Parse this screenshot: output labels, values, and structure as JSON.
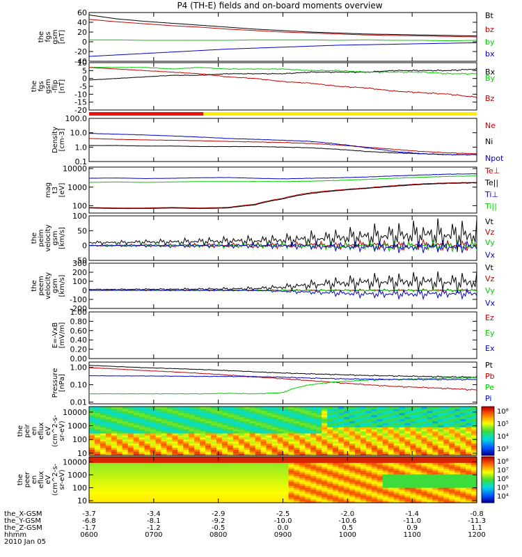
{
  "title": "P4 (TH-E) fields and on-board moments overview",
  "chart_data": [
    {
      "type": "line",
      "ylabel": [
        "the",
        "fgs",
        "gsm",
        "[nT]"
      ],
      "ylim": [
        -40,
        60
      ],
      "yticks": [
        60,
        40,
        20,
        0,
        -20,
        -40
      ],
      "series": [
        {
          "name": "Bt",
          "color": "#000000",
          "values": [
            55,
            47,
            42,
            38,
            34,
            30,
            26,
            23,
            20,
            18,
            16,
            15,
            14,
            13,
            12
          ]
        },
        {
          "name": "bz",
          "color": "#c00000",
          "values": [
            46,
            41,
            37,
            33,
            30,
            26,
            23,
            20,
            18,
            16,
            14,
            13,
            12,
            11,
            10
          ]
        },
        {
          "name": "by",
          "color": "#00cc00",
          "values": [
            4,
            4,
            3,
            3,
            3,
            3,
            4,
            4,
            4,
            3,
            4,
            3,
            3,
            2,
            3
          ]
        },
        {
          "name": "bx",
          "color": "#0000cc",
          "values": [
            -30,
            -27,
            -24,
            -21,
            -18,
            -15,
            -13,
            -11,
            -9,
            -7,
            -6,
            -5,
            -4,
            -3,
            -2
          ]
        }
      ]
    },
    {
      "type": "line",
      "ylabel": [
        "the",
        "fgs",
        "gsm",
        "-flip",
        "[nT]"
      ],
      "ylim": [
        -20,
        10
      ],
      "yticks": [
        10,
        5,
        0,
        -5,
        -10,
        -15,
        -20
      ],
      "series": [
        {
          "name": "Bx",
          "color": "#000000",
          "values": [
            -1,
            0,
            1,
            2,
            2,
            3,
            3,
            3,
            4,
            4,
            4,
            5,
            5,
            5,
            6
          ]
        },
        {
          "name": "By",
          "color": "#00cc00",
          "values": [
            7,
            7,
            7,
            6,
            7,
            6,
            6,
            6,
            5,
            5,
            4,
            4,
            4,
            3,
            3
          ]
        },
        {
          "name": "Bz",
          "color": "#c00000",
          "values": [
            7,
            6,
            5,
            4,
            3,
            1,
            0,
            -2,
            -3,
            -5,
            -6,
            -8,
            -9,
            -10,
            -12
          ]
        }
      ]
    },
    {
      "type": "line",
      "ylabel": [
        "Density",
        "[cm-3]"
      ],
      "yscale": "log",
      "ylim": [
        0.1,
        100
      ],
      "yticks": [
        100.0,
        10.0,
        1.0,
        0.1
      ],
      "yticklabels": [
        "100.0",
        "10.0",
        "1.0",
        "0.1"
      ],
      "series": [
        {
          "name": "Ne",
          "color": "#c00000",
          "values": [
            4,
            3.5,
            3.2,
            3,
            2.8,
            2.5,
            2.3,
            2.1,
            1.8,
            1.4,
            1.0,
            0.7,
            0.5,
            0.4,
            0.35
          ]
        },
        {
          "name": "Ni",
          "color": "#000000",
          "values": [
            1.3,
            1.3,
            1.2,
            1.2,
            1.1,
            1.1,
            1.1,
            1.0,
            0.9,
            0.7,
            0.5,
            0.4,
            0.35,
            0.3,
            0.3
          ]
        },
        {
          "name": "Npot",
          "color": "#0000cc",
          "values": [
            9,
            8,
            7,
            6,
            5,
            4,
            3.5,
            3,
            2.5,
            1.6,
            0.9,
            0.5,
            0.35,
            0.3,
            0.3
          ]
        }
      ]
    },
    {
      "type": "line",
      "ylabel": [
        "mag",
        "t3",
        "[eV]"
      ],
      "yscale": "log",
      "ylim": [
        40,
        12000
      ],
      "yticks": [
        10000,
        1000,
        100
      ],
      "yticklabels": [
        "10000",
        "1000",
        "100"
      ],
      "series": [
        {
          "name": "Te⊥",
          "color": "#c00000",
          "values": [
            80,
            75,
            75,
            80,
            75,
            80,
            120,
            250,
            500,
            700,
            900,
            1200,
            1500,
            1700,
            1800
          ]
        },
        {
          "name": "Te||",
          "color": "#000000",
          "values": [
            75,
            70,
            70,
            75,
            70,
            75,
            110,
            230,
            450,
            650,
            850,
            1100,
            1400,
            1600,
            1700
          ]
        },
        {
          "name": "Ti⊥",
          "color": "#0000cc",
          "values": [
            3000,
            3100,
            2900,
            3000,
            3200,
            3300,
            3000,
            2800,
            3000,
            3200,
            3500,
            4000,
            4500,
            5000,
            5200
          ]
        },
        {
          "name": "Ti||",
          "color": "#00cc00",
          "values": [
            1800,
            1900,
            1800,
            1900,
            2000,
            2000,
            2000,
            2000,
            2100,
            2300,
            2600,
            3000,
            3400,
            3800,
            4000
          ]
        }
      ]
    },
    {
      "type": "line",
      "ylabel": [
        "the",
        "peim",
        "velocity",
        "gsm",
        "[km/s]"
      ],
      "ylim": [
        -50,
        100
      ],
      "yticks": [
        100,
        50,
        0,
        -50
      ],
      "series": [
        {
          "name": "Vt",
          "color": "#000000",
          "values": [
            10,
            10,
            12,
            12,
            14,
            15,
            16,
            18,
            22,
            26,
            30,
            34,
            36,
            36,
            34
          ]
        },
        {
          "name": "Vz",
          "color": "#c00000",
          "values": [
            0,
            0,
            1,
            0,
            1,
            0,
            1,
            0,
            2,
            0,
            3,
            0,
            2,
            0,
            2
          ]
        },
        {
          "name": "Vy",
          "color": "#00cc00",
          "values": [
            0,
            1,
            0,
            1,
            0,
            -1,
            0,
            1,
            0,
            -2,
            0,
            -3,
            0,
            -2,
            0
          ]
        },
        {
          "name": "Vx",
          "color": "#0000cc",
          "values": [
            0,
            0,
            0,
            -1,
            0,
            0,
            -1,
            0,
            -2,
            -3,
            -4,
            -5,
            -5,
            -4,
            -3
          ]
        }
      ]
    },
    {
      "type": "line",
      "ylabel": [
        "the",
        "peem",
        "velocity",
        "gsm",
        "[km/s]"
      ],
      "ylim": [
        -200,
        300
      ],
      "yticks": [
        300,
        200,
        100,
        0,
        -100,
        -200
      ],
      "series": [
        {
          "name": "Vt",
          "color": "#000000",
          "values": [
            10,
            10,
            12,
            12,
            14,
            16,
            20,
            35,
            60,
            80,
            90,
            95,
            95,
            90,
            90
          ]
        },
        {
          "name": "Vz",
          "color": "#c00000",
          "values": [
            0,
            0,
            0,
            0,
            0,
            0,
            0,
            0,
            0,
            0,
            0,
            0,
            0,
            0,
            0
          ]
        },
        {
          "name": "Vy",
          "color": "#00cc00",
          "values": [
            0,
            0,
            0,
            0,
            0,
            0,
            0,
            0,
            0,
            0,
            0,
            0,
            0,
            0,
            0
          ]
        },
        {
          "name": "Vx",
          "color": "#0000cc",
          "values": [
            0,
            0,
            0,
            0,
            0,
            0,
            0,
            -10,
            -20,
            -30,
            -40,
            -40,
            -40,
            -35,
            -35
          ]
        }
      ]
    },
    {
      "type": "line",
      "ylabel": [
        "E=-VxB",
        "[mV/m]"
      ],
      "ylim": [
        0,
        1
      ],
      "yticks": [
        1.0,
        0.8,
        0.6,
        0.4,
        0.2,
        0.0
      ],
      "yticklabels": [
        "1.00",
        "0.80",
        "0.60",
        "0.40",
        "0.20",
        "0.00"
      ],
      "series": [
        {
          "name": "Ez",
          "color": "#c00000",
          "values": []
        },
        {
          "name": "Ey",
          "color": "#00cc00",
          "values": []
        },
        {
          "name": "Ex",
          "color": "#0000cc",
          "values": []
        }
      ]
    },
    {
      "type": "line",
      "ylabel": [
        "Pressure",
        "[nPa]"
      ],
      "yscale": "log",
      "ylim": [
        0.008,
        2
      ],
      "yticks": [
        1.0,
        0.1,
        0.01
      ],
      "yticklabels": [
        "1.00",
        "0.10",
        "0.01"
      ],
      "series": [
        {
          "name": "Pt",
          "color": "#000000",
          "values": [
            1.3,
            1.1,
            0.95,
            0.85,
            0.75,
            0.65,
            0.55,
            0.47,
            0.42,
            0.38,
            0.34,
            0.32,
            0.3,
            0.28,
            0.27
          ]
        },
        {
          "name": "Pb",
          "color": "#c00000",
          "values": [
            0.95,
            0.8,
            0.65,
            0.55,
            0.45,
            0.36,
            0.28,
            0.22,
            0.17,
            0.13,
            0.1,
            0.08,
            0.07,
            0.06,
            0.05
          ]
        },
        {
          "name": "Pe",
          "color": "#00cc00",
          "values": [
            0.03,
            0.03,
            0.03,
            0.03,
            0.03,
            0.032,
            0.03,
            0.035,
            0.1,
            0.15,
            0.18,
            0.2,
            0.22,
            0.24,
            0.25
          ]
        },
        {
          "name": "Pi",
          "color": "#0000cc",
          "values": [
            0.33,
            0.32,
            0.32,
            0.31,
            0.3,
            0.3,
            0.29,
            0.27,
            0.24,
            0.22,
            0.21,
            0.2,
            0.2,
            0.2,
            0.2
          ]
        }
      ]
    },
    {
      "type": "heatmap",
      "ylabel": [
        "the",
        "peir",
        "en",
        "eflux",
        "eV",
        "(cm^2-s-",
        "sr-eV)"
      ],
      "yscale": "log",
      "ylim": [
        7,
        25000
      ],
      "yticks": [
        10000,
        1000,
        100,
        10
      ],
      "yticklabels": [
        "10000",
        "1000",
        "100",
        "10"
      ],
      "colorbar": {
        "ticks": [
          "10⁸",
          "10⁵",
          "10⁴",
          "10³"
        ],
        "range": [
          3,
          8
        ]
      }
    },
    {
      "type": "heatmap",
      "ylabel": [
        "the",
        "peer",
        "en",
        "eflux",
        "eV",
        "(cm^2-s-",
        "sr-eV)"
      ],
      "yscale": "log",
      "ylim": [
        7,
        25000
      ],
      "yticks": [
        10000,
        1000,
        100,
        10
      ],
      "yticklabels": [
        "10000",
        "1000",
        "100",
        "10"
      ],
      "colorbar": {
        "ticks": [
          "10⁸",
          "10⁷",
          "10⁶",
          "10⁵",
          "10⁴"
        ],
        "range": [
          4,
          8.5
        ]
      }
    }
  ],
  "mode_bar": [
    {
      "color": "#ee1111",
      "from": 0.0,
      "to": 0.295
    },
    {
      "color": "#ffee00",
      "from": 0.295,
      "to": 1.0
    }
  ],
  "x_axis": {
    "rows": [
      {
        "label": "the_X-GSM",
        "values": [
          "-3.7",
          "-3.4",
          "-2.9",
          "-2.5",
          "-2.0",
          "-1.4",
          "-0.8"
        ]
      },
      {
        "label": "the_Y-GSM",
        "values": [
          "-6.8",
          "-8.1",
          "-9.2",
          "-10.0",
          "-10.6",
          "-11.0",
          "-11.3"
        ]
      },
      {
        "label": "the_Z-GSM",
        "values": [
          "-1.7",
          "-1.2",
          "-0.5",
          "0.0",
          "0.5",
          "0.9",
          "1.1"
        ]
      },
      {
        "label": "hhmm",
        "values": [
          "0600",
          "0700",
          "0800",
          "0900",
          "1000",
          "1100",
          "1200"
        ]
      }
    ],
    "date": "2010 Jan 05"
  }
}
